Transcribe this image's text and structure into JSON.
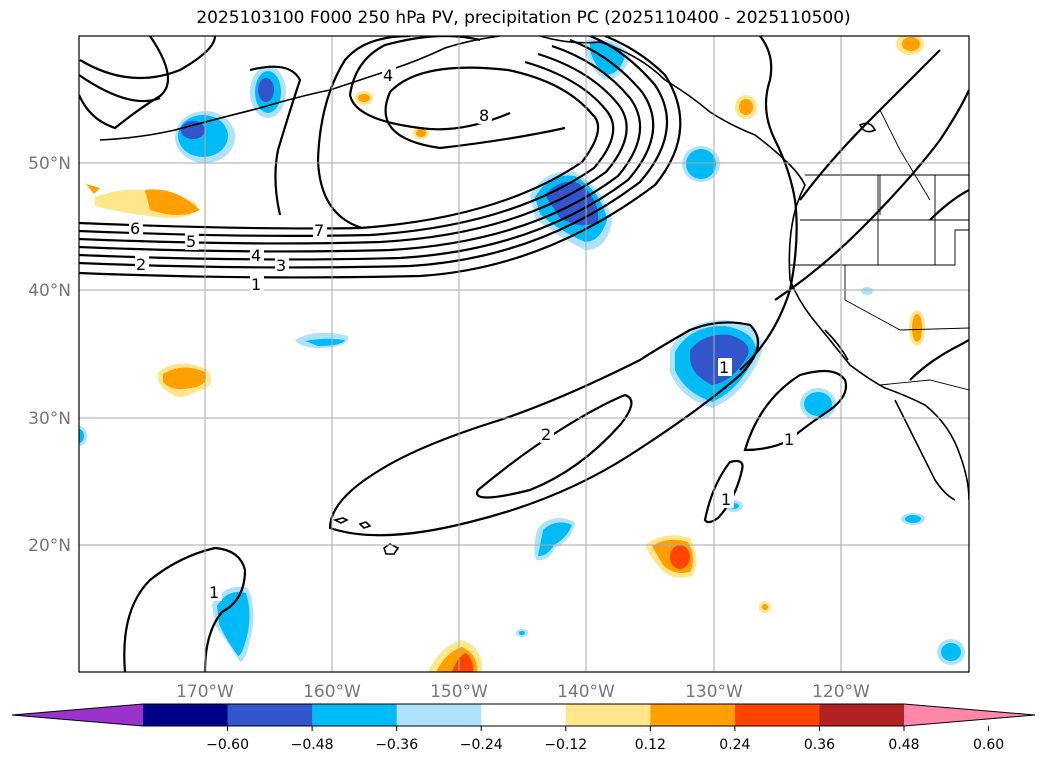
{
  "title": "2025103100 F000 250 hPa PV, precipitation PC (2025110400 - 2025110500)",
  "lat_labels": [
    "50°N",
    "40°N",
    "30°N",
    "20°N"
  ],
  "lon_labels": [
    "170°W",
    "160°W",
    "150°W",
    "140°W",
    "130°W",
    "120°W"
  ],
  "colorbar": {
    "ticks": [
      "−0.60",
      "−0.48",
      "−0.36",
      "−0.24",
      "−0.12",
      "0.12",
      "0.24",
      "0.36",
      "0.48",
      "0.60"
    ],
    "colors": [
      "#9933cc",
      "#000088",
      "#3355cc",
      "#00bbf5",
      "#aee2fa",
      "#ffffff",
      "#ffe68c",
      "#ffa000",
      "#ff4400",
      "#b22222",
      "#ff88aa"
    ]
  },
  "contour_labels": {
    "c1": "1",
    "c2": "2",
    "c3": "3",
    "c4": "4",
    "c5": "5",
    "c6": "6",
    "c7": "7",
    "c8": "8",
    "c2b": "2",
    "c1b": "1",
    "c1c": "1",
    "c1d": "1",
    "c1e": "1",
    "c4b": "4"
  }
}
